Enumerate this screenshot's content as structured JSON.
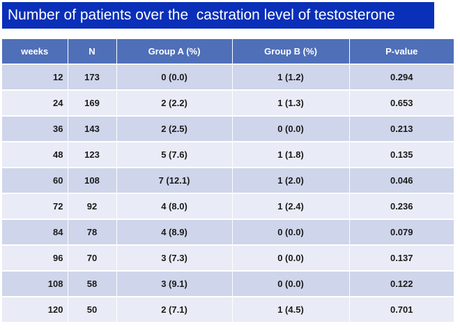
{
  "title": "Number of patients over the  castration level of testosterone",
  "columns": [
    "weeks",
    "N",
    "Group A (%)",
    "Group B (%)",
    "P-value"
  ],
  "rows": [
    [
      "12",
      "173",
      "0 (0.0)",
      "1 (1.2)",
      "0.294"
    ],
    [
      "24",
      "169",
      "2 (2.2)",
      "1 (1.3)",
      "0.653"
    ],
    [
      "36",
      "143",
      "2 (2.5)",
      "0 (0.0)",
      "0.213"
    ],
    [
      "48",
      "123",
      "5 (7.6)",
      "1 (1.8)",
      "0.135"
    ],
    [
      "60",
      "108",
      "7 (12.1)",
      "1 (2.0)",
      "0.046"
    ],
    [
      "72",
      "92",
      "4 (8.0)",
      "1 (2.4)",
      "0.236"
    ],
    [
      "84",
      "78",
      "4 (8.9)",
      "0 (0.0)",
      "0.079"
    ],
    [
      "96",
      "70",
      "3 (7.3)",
      "0 (0.0)",
      "0.137"
    ],
    [
      "108",
      "58",
      "3 (9.1)",
      "0 (0.0)",
      "0.122"
    ],
    [
      "120",
      "50",
      "2 (7.1)",
      "1 (4.5)",
      "0.701"
    ]
  ],
  "colors": {
    "title_bg": "#0a2fb8",
    "header_bg": "#4f6fb8",
    "row_odd": "#cfd5ea",
    "row_even": "#e9ecf6"
  }
}
